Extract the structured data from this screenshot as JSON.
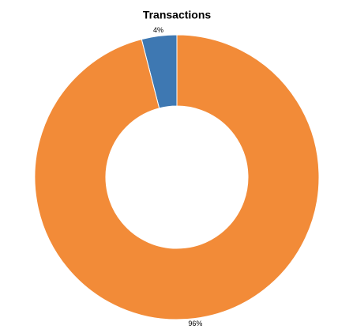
{
  "chart_data": {
    "type": "donut",
    "title": "Transactions",
    "values": [
      4,
      96
    ],
    "value_labels": [
      "4%",
      "96%"
    ],
    "colors": [
      "#3e78b2",
      "#f28b38"
    ]
  }
}
